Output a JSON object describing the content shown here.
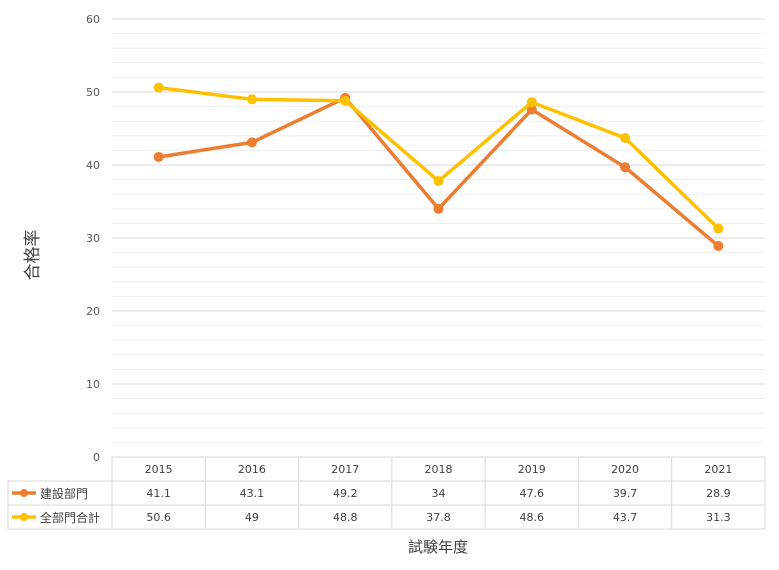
{
  "chart_data": {
    "type": "line",
    "categories": [
      "2015",
      "2016",
      "2017",
      "2018",
      "2019",
      "2020",
      "2021"
    ],
    "series": [
      {
        "name": "建設部門",
        "values": [
          41.1,
          43.1,
          49.2,
          34,
          47.6,
          39.7,
          28.9
        ],
        "color": "#ED7D31"
      },
      {
        "name": "全部門合計",
        "values": [
          50.6,
          49,
          48.8,
          37.8,
          48.6,
          43.7,
          31.3
        ],
        "color": "#FFC000"
      }
    ],
    "y_ticks": [
      "0",
      "10",
      "20",
      "30",
      "40",
      "50",
      "60"
    ],
    "ylim": [
      0,
      60
    ],
    "ylabel": "合格率",
    "xlabel": "試験年度",
    "legend_placement": "data-table",
    "grid": "major-and-minor"
  }
}
